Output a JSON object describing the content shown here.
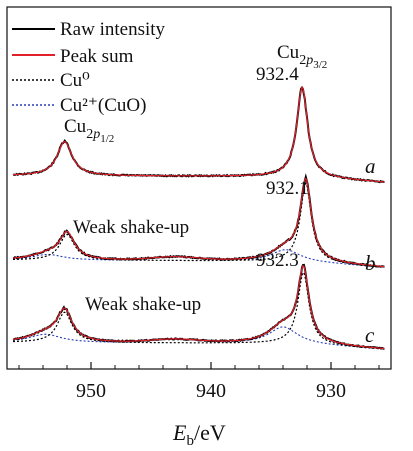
{
  "chart_data": {
    "type": "line",
    "title": "",
    "xlabel": "E_b/eV",
    "xlabel_main": "E",
    "xlabel_sub": "b",
    "xlabel_unit": "/eV",
    "ylabel": "",
    "xlim": [
      957,
      925
    ],
    "x_reversed": true,
    "x_ticks": [
      950,
      940,
      930
    ],
    "x_tick_labels": [
      "950",
      "940",
      "930"
    ],
    "legend": {
      "placement": "top-left",
      "entries": [
        {
          "label": "Raw intensity",
          "color": "#000000",
          "style": "solid"
        },
        {
          "label": "Peak sum",
          "color": "#e0202a",
          "style": "solid"
        },
        {
          "label": "Cu⁰",
          "color": "#000000",
          "style": "dotted"
        },
        {
          "label": "Cu²⁺(CuO)",
          "color": "#2a3fb5",
          "style": "dotted"
        }
      ]
    },
    "peak_labels": {
      "p32": {
        "main": "Cu",
        "sub": "2",
        "subsub": "p",
        "subsubsub": "3/2"
      },
      "p12": {
        "main": "Cu",
        "sub": "2",
        "subsub": "p",
        "subsubsub": "1/2"
      }
    },
    "spectra": [
      {
        "panel": "a",
        "offset": 2.0,
        "p32_position": 932.4,
        "p32_label": "932.4",
        "p32_height": 1.0,
        "p12_position": 952.2,
        "p12_height": 0.38,
        "cu2_fraction": 0.0,
        "shake_up": false,
        "annotation": ""
      },
      {
        "panel": "b",
        "offset": 1.0,
        "p32_position": 932.1,
        "p32_label": "932.1",
        "p32_height": 0.82,
        "p12_position": 952.0,
        "p12_height": 0.27,
        "cu2_fraction": 0.12,
        "shake_up": true,
        "annotation": "Weak shake-up"
      },
      {
        "panel": "c",
        "offset": 0.0,
        "p32_position": 932.3,
        "p32_label": "932.3",
        "p32_height": 0.78,
        "p12_position": 952.2,
        "p12_height": 0.33,
        "cu2_fraction": 0.18,
        "shake_up": true,
        "annotation": "Weak shake-up"
      }
    ],
    "colors": {
      "raw": "#000000",
      "peak_sum": "#e0202a",
      "cu0": "#000000",
      "cu2": "#2a3fb5"
    }
  }
}
